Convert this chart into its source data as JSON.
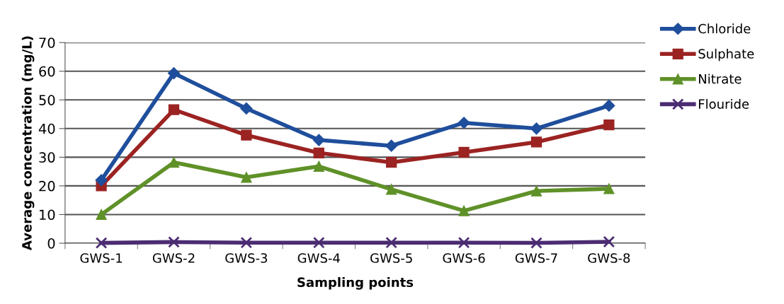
{
  "chart_data": {
    "type": "line",
    "xlabel": "Sampling points",
    "ylabel": "Average concentration (mg/L)",
    "categories": [
      "GWS-1",
      "GWS-2",
      "GWS-3",
      "GWS-4",
      "GWS-5",
      "GWS-6",
      "GWS-7",
      "GWS-8"
    ],
    "series": [
      {
        "name": "Chloride",
        "color": "#1f4e9c",
        "marker": "diamond",
        "values": [
          22,
          59.3,
          47,
          36,
          34,
          42,
          40,
          48
        ]
      },
      {
        "name": "Sulphate",
        "color": "#9b2322",
        "marker": "square",
        "values": [
          20,
          46.6,
          37.7,
          31.5,
          28.2,
          31.7,
          35.3,
          41.3
        ]
      },
      {
        "name": "Nitrate",
        "color": "#5f9128",
        "marker": "triangle",
        "values": [
          10,
          28.2,
          23,
          26.8,
          18.8,
          11.3,
          18.2,
          19
        ]
      },
      {
        "name": "Flouride",
        "color": "#4b2c72",
        "marker": "cross",
        "values": [
          0.1,
          0.4,
          0.2,
          0.2,
          0.2,
          0.2,
          0.1,
          0.5
        ]
      }
    ],
    "ylim": [
      0,
      70
    ],
    "yticks": [
      0,
      10,
      20,
      30,
      40,
      50,
      60,
      70
    ],
    "grid": "y",
    "legend": "top right",
    "line_style": "solid"
  }
}
